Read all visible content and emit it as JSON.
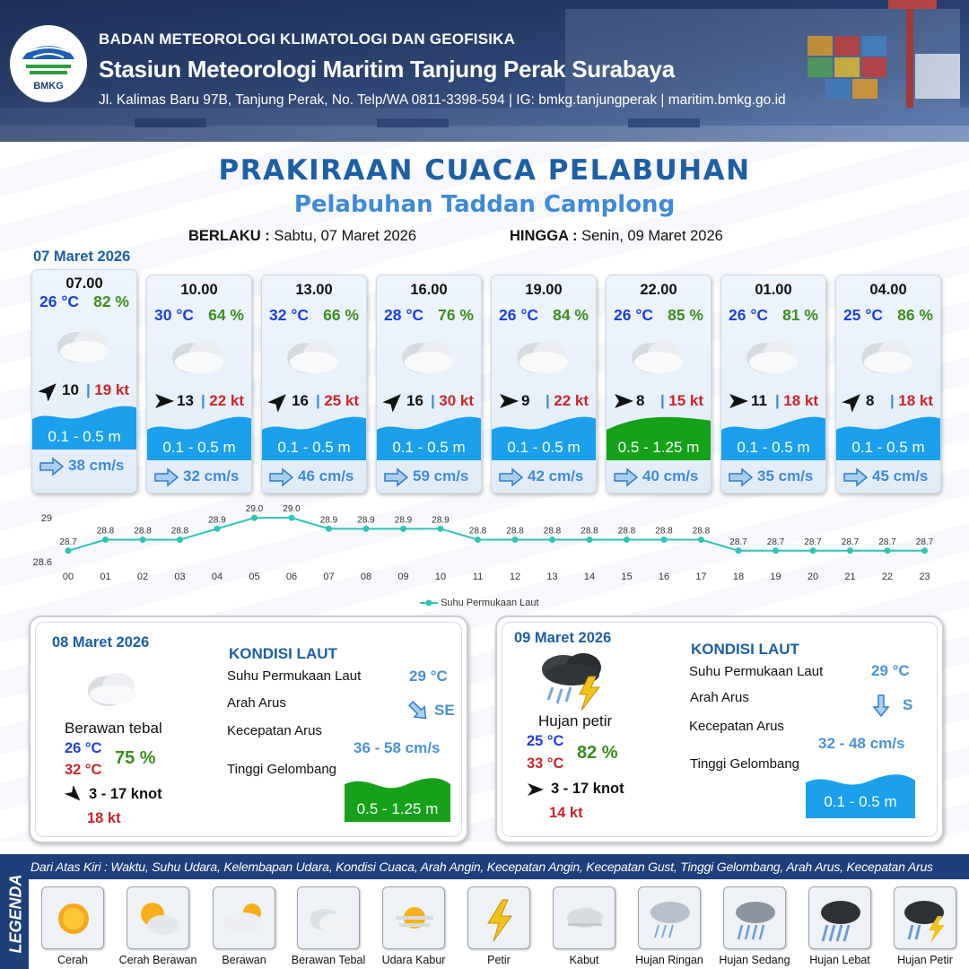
{
  "header": {
    "logo_text": "BMKG",
    "organization": "BADAN METEOROLOGI KLIMATOLOGI DAN GEOFISIKA",
    "station": "Stasiun Meteorologi Maritim Tanjung Perak Surabaya",
    "address": "Jl. Kalimas Baru 97B, Tanjung Perak, No. Telp/WA 0811-3398-594 | IG: bmkg.tanjungperak | maritim.bmkg.go.id"
  },
  "title": "PRAKIRAAN CUACA PELABUHAN",
  "port_name": "Pelabuhan Taddan Camplong",
  "validity": {
    "from_label": "BERLAKU :",
    "from_value": "Sabtu, 07 Maret 2026",
    "to_label": "HINGGA :",
    "to_value": "Senin, 09 Maret 2026"
  },
  "day1": {
    "date": "07 Maret 2026",
    "hours": [
      {
        "time": "07.00",
        "temp": "26 °C",
        "humidity": "82 %",
        "condition": "Berawan Tebal",
        "wind_dir_deg": 45,
        "wind_speed": "10",
        "gust": "19 kt",
        "wave": "0.1 - 0.5 m",
        "wave_level": "low",
        "current_speed": "38 cm/s"
      },
      {
        "time": "10.00",
        "temp": "30 °C",
        "humidity": "64 %",
        "condition": "Berawan Tebal",
        "wind_dir_deg": 90,
        "wind_speed": "13",
        "gust": "22 kt",
        "wave": "0.1 - 0.5 m",
        "wave_level": "low",
        "current_speed": "32 cm/s"
      },
      {
        "time": "13.00",
        "temp": "32 °C",
        "humidity": "66 %",
        "condition": "Berawan Tebal",
        "wind_dir_deg": 45,
        "wind_speed": "16",
        "gust": "25 kt",
        "wave": "0.1 - 0.5 m",
        "wave_level": "low",
        "current_speed": "46 cm/s"
      },
      {
        "time": "16.00",
        "temp": "28 °C",
        "humidity": "76 %",
        "condition": "Berawan Tebal",
        "wind_dir_deg": 45,
        "wind_speed": "16",
        "gust": "30 kt",
        "wave": "0.1 - 0.5 m",
        "wave_level": "low",
        "current_speed": "59 cm/s"
      },
      {
        "time": "19.00",
        "temp": "26 °C",
        "humidity": "84 %",
        "condition": "Berawan Tebal",
        "wind_dir_deg": 90,
        "wind_speed": "9",
        "gust": "22 kt",
        "wave": "0.1 - 0.5 m",
        "wave_level": "low",
        "current_speed": "42 cm/s"
      },
      {
        "time": "22.00",
        "temp": "26 °C",
        "humidity": "85 %",
        "condition": "Berawan Tebal",
        "wind_dir_deg": 90,
        "wind_speed": "8",
        "gust": "15 kt",
        "wave": "0.5 - 1.25 m",
        "wave_level": "moderate",
        "current_speed": "40 cm/s"
      },
      {
        "time": "01.00",
        "temp": "26 °C",
        "humidity": "81 %",
        "condition": "Berawan Tebal",
        "wind_dir_deg": 90,
        "wind_speed": "11",
        "gust": "18 kt",
        "wave": "0.1 - 0.5 m",
        "wave_level": "low",
        "current_speed": "35 cm/s"
      },
      {
        "time": "04.00",
        "temp": "25 °C",
        "humidity": "86 %",
        "condition": "Berawan Tebal",
        "wind_dir_deg": 45,
        "wind_speed": "8",
        "gust": "18 kt",
        "wave": "0.1 - 0.5 m",
        "wave_level": "low",
        "current_speed": "45 cm/s"
      }
    ]
  },
  "colors": {
    "wave_low": "#1aa0ec",
    "wave_moderate": "#16a11a",
    "temp": "#1f3fe0",
    "humidity": "#3b8d1e",
    "gust": "#c8262a",
    "title": "#1c5fa5"
  },
  "chart_data": {
    "type": "line",
    "title": "",
    "legend": "Suhu Permukaan Laut",
    "legend_position": "bottom",
    "x": [
      "00",
      "01",
      "02",
      "03",
      "04",
      "05",
      "06",
      "07",
      "08",
      "09",
      "10",
      "11",
      "12",
      "13",
      "14",
      "15",
      "16",
      "17",
      "18",
      "19",
      "20",
      "21",
      "22",
      "23"
    ],
    "series": [
      {
        "name": "Suhu Permukaan Laut",
        "values": [
          28.7,
          28.8,
          28.8,
          28.8,
          28.9,
          29.0,
          29.0,
          28.9,
          28.9,
          28.9,
          28.9,
          28.8,
          28.8,
          28.8,
          28.8,
          28.8,
          28.8,
          28.8,
          28.7,
          28.7,
          28.7,
          28.7,
          28.7,
          28.7
        ]
      }
    ],
    "y_ticks": [
      "29",
      "28.6"
    ],
    "ylim": [
      28.6,
      29.05
    ],
    "grid": false
  },
  "day2": {
    "date": "08 Maret 2026",
    "condition": "Berawan tebal",
    "temp_min": "26 °C",
    "temp_max": "32 °C",
    "humidity": "75 %",
    "wind": "3  - 17 knot",
    "gust": "18 kt",
    "sea_title": "KONDISI LAUT",
    "sst_label": "Suhu Permukaan Laut",
    "sst_value": "29 °C",
    "current_dir_label": "Arah Arus",
    "current_dir": "SE",
    "current_speed_label": "Kecepatan Arus",
    "current_speed": "36  - 58 cm/s",
    "wave_label": "Tinggi Gelombang",
    "wave": "0.5 - 1.25 m"
  },
  "day3": {
    "date": "09 Maret 2026",
    "condition": "Hujan petir",
    "temp_min": "25 °C",
    "temp_max": "33 °C",
    "humidity": "82 %",
    "wind": "3  - 17 knot",
    "gust": "14 kt",
    "sea_title": "KONDISI LAUT",
    "sst_label": "Suhu Permukaan Laut",
    "sst_value": "29 °C",
    "current_dir_label": "Arah Arus",
    "current_dir": "S",
    "current_speed_label": "Kecepatan Arus",
    "current_speed": "32 - 48 cm/s",
    "wave_label": "Tinggi Gelombang",
    "wave": "0.1 - 0.5 m"
  },
  "legend": {
    "title": "LEGENDA",
    "description": "Dari Atas Kiri : Waktu, Suhu Udara, Kelembapan Udara, Kondisi Cuaca, Arah Angin, Kecepatan Angin, Kecepatan Gust, Tinggi Gelombang, Arah Arus, Kecepatan Arus",
    "items": [
      {
        "label": "Cerah",
        "icon": "sun-icon"
      },
      {
        "label": "Cerah Berawan",
        "icon": "sun-cloud-icon"
      },
      {
        "label": "Berawan",
        "icon": "cloud-sun-icon"
      },
      {
        "label": "Berawan Tebal",
        "icon": "cloud-icon"
      },
      {
        "label": "Udara Kabur",
        "icon": "haze-icon"
      },
      {
        "label": "Petir",
        "icon": "lightning-icon"
      },
      {
        "label": "Kabut",
        "icon": "fog-icon"
      },
      {
        "label": "Hujan Ringan",
        "icon": "light-rain-icon"
      },
      {
        "label": "Hujan Sedang",
        "icon": "moderate-rain-icon"
      },
      {
        "label": "Hujan Lebat",
        "icon": "heavy-rain-icon"
      },
      {
        "label": "Hujan Petir",
        "icon": "thunderstorm-icon"
      }
    ]
  }
}
